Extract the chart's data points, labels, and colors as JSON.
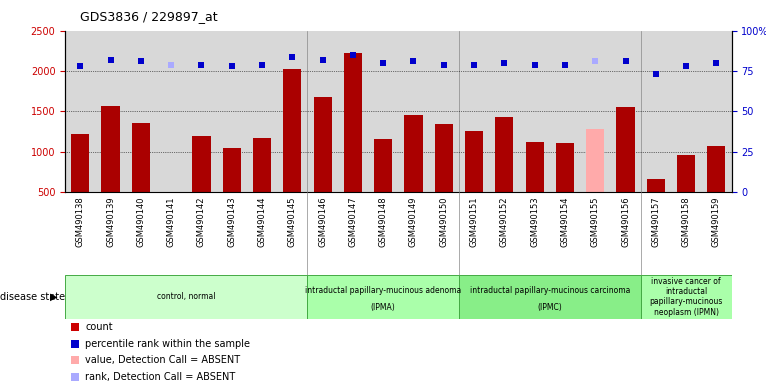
{
  "title": "GDS3836 / 229897_at",
  "samples": [
    "GSM490138",
    "GSM490139",
    "GSM490140",
    "GSM490141",
    "GSM490142",
    "GSM490143",
    "GSM490144",
    "GSM490145",
    "GSM490146",
    "GSM490147",
    "GSM490148",
    "GSM490149",
    "GSM490150",
    "GSM490151",
    "GSM490152",
    "GSM490153",
    "GSM490154",
    "GSM490155",
    "GSM490156",
    "GSM490157",
    "GSM490158",
    "GSM490159"
  ],
  "count_values": [
    1220,
    1565,
    1360,
    500,
    1195,
    1040,
    1170,
    2020,
    1680,
    2220,
    1155,
    1455,
    1340,
    1260,
    1435,
    1120,
    1110,
    1280,
    1555,
    665,
    960,
    1065
  ],
  "absent_mask": [
    false,
    false,
    false,
    true,
    false,
    false,
    false,
    false,
    false,
    false,
    false,
    false,
    false,
    false,
    false,
    false,
    false,
    true,
    false,
    false,
    false,
    false
  ],
  "percentile_values": [
    78,
    82,
    81,
    79,
    79,
    78,
    79,
    84,
    82,
    85,
    80,
    81,
    79,
    79,
    80,
    79,
    79,
    81,
    81,
    73,
    78,
    80
  ],
  "percentile_absent_mask": [
    false,
    false,
    false,
    true,
    false,
    false,
    false,
    false,
    false,
    false,
    false,
    false,
    false,
    false,
    false,
    false,
    false,
    true,
    false,
    false,
    false,
    false
  ],
  "ylim_left": [
    500,
    2500
  ],
  "ylim_right": [
    0,
    100
  ],
  "yticks_left": [
    500,
    1000,
    1500,
    2000,
    2500
  ],
  "yticks_right": [
    0,
    25,
    50,
    75,
    100
  ],
  "group_spans": [
    {
      "start": 0,
      "end": 8,
      "label": "control, normal",
      "label2": "",
      "color": "#ccffcc"
    },
    {
      "start": 8,
      "end": 13,
      "label": "intraductal papillary-mucinous adenoma",
      "label2": "(IPMA)",
      "color": "#aaffaa"
    },
    {
      "start": 13,
      "end": 19,
      "label": "intraductal papillary-mucinous carcinoma",
      "label2": "(IPMC)",
      "color": "#88ee88"
    },
    {
      "start": 19,
      "end": 22,
      "label": "invasive cancer of\nintraductal\npapillary-mucinous\nneoplasm (IPMN)",
      "label2": "",
      "color": "#aaffaa"
    }
  ],
  "bar_color_present": "#aa0000",
  "bar_color_absent": "#ffaaaa",
  "dot_color_present": "#0000cc",
  "dot_color_absent": "#aaaaff",
  "plot_bg_color": "#d8d8d8",
  "xtick_bg_color": "#d8d8d8",
  "legend_items": [
    {
      "label": "count",
      "color": "#cc0000"
    },
    {
      "label": "percentile rank within the sample",
      "color": "#0000cc"
    },
    {
      "label": "value, Detection Call = ABSENT",
      "color": "#ffaaaa"
    },
    {
      "label": "rank, Detection Call = ABSENT",
      "color": "#aaaaff"
    }
  ]
}
